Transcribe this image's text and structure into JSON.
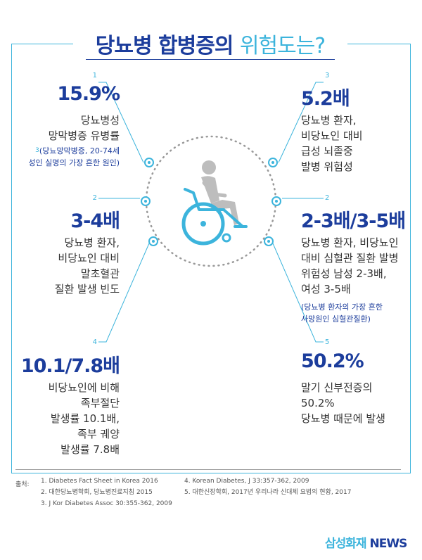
{
  "title": {
    "main": "당뇨병 합병증의",
    "light": "위험도는?"
  },
  "stats": [
    {
      "num": "1",
      "value": "15.9%",
      "desc": [
        "당뇨병성",
        "망막병증 유병률"
      ],
      "note_num": "3",
      "note": [
        "(당뇨망막병증, 20-74세",
        "성인 실명의 가장 흔한 원인)"
      ]
    },
    {
      "num": "2",
      "value": "3-4배",
      "desc": [
        "당뇨병 환자,",
        "비당뇨인 대비",
        "말초혈관",
        "질환 발생 빈도"
      ]
    },
    {
      "num": "4",
      "value": "10.1/7.8배",
      "desc": [
        "비당뇨인에 비해",
        "족부절단",
        "발생률 10.1배,",
        "족부 궤양",
        "발생률 7.8배"
      ]
    },
    {
      "num": "3",
      "value": "5.2배",
      "desc": [
        "당뇨병 환자,",
        "비당뇨인 대비",
        "급성 뇌졸중",
        "발병 위험성"
      ]
    },
    {
      "num": "2",
      "value": "2-3배/3-5배",
      "desc": [
        "당뇨병 환자, 비당뇨인",
        "대비 심혈관 질환 발병",
        "위험성 남성 2-3배,",
        "여성 3-5배"
      ],
      "note": [
        "(당뇨병 환자의 가장 흔한",
        "사망원인 심혈관질환)"
      ]
    },
    {
      "num": "5",
      "value": "50.2%",
      "desc": [
        "말기 신부전증의",
        "50.2%",
        "당뇨병 때문에 발생"
      ]
    }
  ],
  "sources": {
    "label": "출처:",
    "left": [
      "1. Diabetes Fact Sheet in Korea 2016",
      "2. 대한당뇨병학회, 당뇨병진료지침 2015",
      "3. J Kor Diabetes Assoc 30:355-362, 2009"
    ],
    "right": [
      "4. Korean Diabetes, J 33:357-362, 2009",
      "5. 대한신장학회, 2017년 우리나라 신대체 요법의 현황, 2017"
    ]
  },
  "brand": {
    "name": "삼성화재",
    "news": "NEWS"
  },
  "icons": {
    "center": "wheelchair-user-icon"
  },
  "colors": {
    "navy": "#1c3d9c",
    "cyan": "#3cb4dc"
  }
}
